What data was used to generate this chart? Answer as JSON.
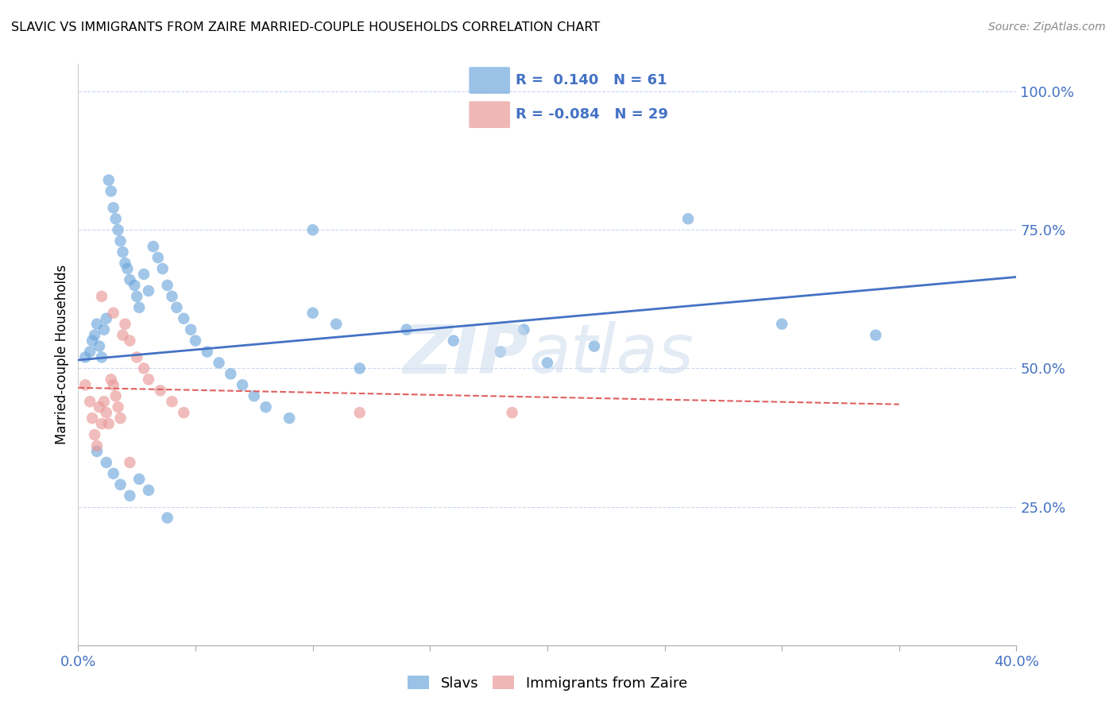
{
  "title": "SLAVIC VS IMMIGRANTS FROM ZAIRE MARRIED-COUPLE HOUSEHOLDS CORRELATION CHART",
  "source": "Source: ZipAtlas.com",
  "ylabel": "Married-couple Households",
  "xlim": [
    0.0,
    0.4
  ],
  "ylim": [
    0.0,
    1.05
  ],
  "ytick_vals": [
    0.0,
    0.25,
    0.5,
    0.75,
    1.0
  ],
  "xtick_vals": [
    0.0,
    0.05,
    0.1,
    0.15,
    0.2,
    0.25,
    0.3,
    0.35,
    0.4
  ],
  "legend_blue_r": "0.140",
  "legend_blue_n": "61",
  "legend_pink_r": "-0.084",
  "legend_pink_n": "29",
  "blue_color": "#6fa8dc",
  "pink_color": "#ea9999",
  "line_blue_color": "#4472c4",
  "line_pink_color": "#e06060",
  "blue_x": [
    0.003,
    0.005,
    0.006,
    0.007,
    0.008,
    0.009,
    0.01,
    0.011,
    0.012,
    0.013,
    0.014,
    0.015,
    0.016,
    0.017,
    0.018,
    0.019,
    0.02,
    0.021,
    0.022,
    0.024,
    0.025,
    0.026,
    0.028,
    0.03,
    0.032,
    0.034,
    0.036,
    0.038,
    0.04,
    0.042,
    0.045,
    0.048,
    0.05,
    0.055,
    0.06,
    0.065,
    0.07,
    0.075,
    0.08,
    0.09,
    0.1,
    0.11,
    0.12,
    0.14,
    0.16,
    0.18,
    0.2,
    0.22,
    0.26,
    0.3,
    0.34,
    0.008,
    0.012,
    0.015,
    0.018,
    0.022,
    0.026,
    0.03,
    0.038,
    0.1,
    0.19
  ],
  "blue_y": [
    0.52,
    0.53,
    0.55,
    0.56,
    0.58,
    0.54,
    0.52,
    0.57,
    0.59,
    0.84,
    0.82,
    0.79,
    0.77,
    0.75,
    0.73,
    0.71,
    0.69,
    0.68,
    0.66,
    0.65,
    0.63,
    0.61,
    0.67,
    0.64,
    0.72,
    0.7,
    0.68,
    0.65,
    0.63,
    0.61,
    0.59,
    0.57,
    0.55,
    0.53,
    0.51,
    0.49,
    0.47,
    0.45,
    0.43,
    0.41,
    0.6,
    0.58,
    0.5,
    0.57,
    0.55,
    0.53,
    0.51,
    0.54,
    0.77,
    0.58,
    0.56,
    0.35,
    0.33,
    0.31,
    0.29,
    0.27,
    0.3,
    0.28,
    0.23,
    0.75,
    0.57
  ],
  "pink_x": [
    0.003,
    0.005,
    0.006,
    0.007,
    0.008,
    0.009,
    0.01,
    0.011,
    0.012,
    0.013,
    0.014,
    0.015,
    0.016,
    0.017,
    0.018,
    0.019,
    0.02,
    0.022,
    0.025,
    0.028,
    0.03,
    0.035,
    0.04,
    0.045,
    0.12,
    0.185,
    0.01,
    0.015,
    0.022
  ],
  "pink_y": [
    0.47,
    0.44,
    0.41,
    0.38,
    0.36,
    0.43,
    0.4,
    0.44,
    0.42,
    0.4,
    0.48,
    0.47,
    0.45,
    0.43,
    0.41,
    0.56,
    0.58,
    0.55,
    0.52,
    0.5,
    0.48,
    0.46,
    0.44,
    0.42,
    0.42,
    0.42,
    0.63,
    0.6,
    0.33
  ],
  "blue_line_x": [
    0.0,
    0.4
  ],
  "blue_line_y": [
    0.515,
    0.665
  ],
  "pink_line_x": [
    0.0,
    0.35
  ],
  "pink_line_y": [
    0.465,
    0.435
  ]
}
